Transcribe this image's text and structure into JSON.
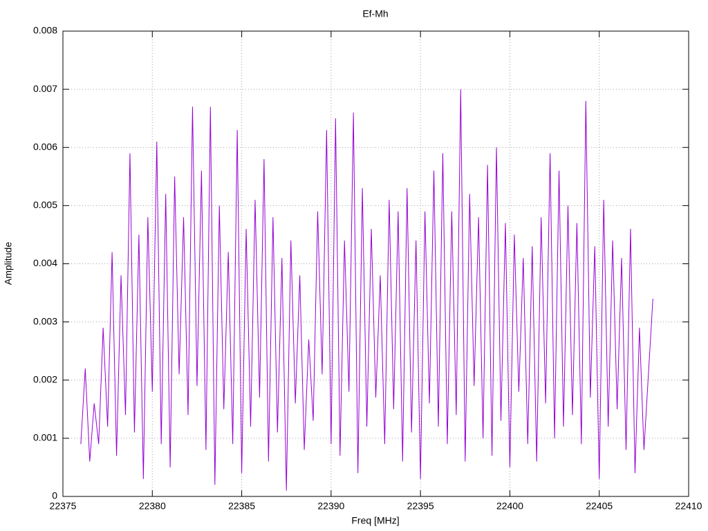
{
  "chart_data": {
    "type": "line",
    "title": "Ef-Mh",
    "x_label": "Freq [MHz]",
    "y_label": "Amplitude",
    "color": "#9400d3",
    "grid": true,
    "xlim": [
      22375,
      22410
    ],
    "xticks": [
      22375,
      22380,
      22385,
      22390,
      22395,
      22400,
      22405,
      22410
    ],
    "ylim": [
      0,
      0.008
    ],
    "yticks": [
      0,
      0.001,
      0.002,
      0.003,
      0.004,
      0.005,
      0.006,
      0.007,
      0.008
    ],
    "x": [
      22376,
      22376.25,
      22376.5,
      22376.75,
      22377,
      22377.25,
      22377.5,
      22377.75,
      22378,
      22378.25,
      22378.5,
      22378.75,
      22379,
      22379.25,
      22379.5,
      22379.75,
      22380,
      22380.25,
      22380.5,
      22380.75,
      22381,
      22381.25,
      22381.5,
      22381.75,
      22382,
      22382.25,
      22382.5,
      22382.75,
      22383,
      22383.25,
      22383.5,
      22383.75,
      22384,
      22384.25,
      22384.5,
      22384.75,
      22385,
      22385.25,
      22385.5,
      22385.75,
      22386,
      22386.25,
      22386.5,
      22386.75,
      22387,
      22387.25,
      22387.5,
      22387.75,
      22388,
      22388.25,
      22388.5,
      22388.75,
      22389,
      22389.25,
      22389.5,
      22389.75,
      22390,
      22390.25,
      22390.5,
      22390.75,
      22391,
      22391.25,
      22391.5,
      22391.75,
      22392,
      22392.25,
      22392.5,
      22392.75,
      22393,
      22393.25,
      22393.5,
      22393.75,
      22394,
      22394.25,
      22394.5,
      22394.75,
      22395,
      22395.25,
      22395.5,
      22395.75,
      22396,
      22396.25,
      22396.5,
      22396.75,
      22397,
      22397.25,
      22397.5,
      22397.75,
      22398,
      22398.25,
      22398.5,
      22398.75,
      22399,
      22399.25,
      22399.5,
      22399.75,
      22400,
      22400.25,
      22400.5,
      22400.75,
      22401,
      22401.25,
      22401.5,
      22401.75,
      22402,
      22402.25,
      22402.5,
      22402.75,
      22403,
      22403.25,
      22403.5,
      22403.75,
      22404,
      22404.25,
      22404.5,
      22404.75,
      22405,
      22405.25,
      22405.5,
      22405.75,
      22406,
      22406.25,
      22406.5,
      22406.75,
      22407,
      22407.25,
      22407.5,
      22407.75,
      22408
    ],
    "values": [
      0.0009,
      0.0022,
      0.0006,
      0.0016,
      0.0009,
      0.0029,
      0.0012,
      0.0042,
      0.0007,
      0.0038,
      0.0014,
      0.0059,
      0.0011,
      0.0045,
      0.0003,
      0.0048,
      0.0018,
      0.0061,
      0.0009,
      0.0052,
      0.0005,
      0.0055,
      0.0021,
      0.0048,
      0.0014,
      0.0067,
      0.0019,
      0.0056,
      0.0008,
      0.0067,
      0.0002,
      0.005,
      0.0015,
      0.0042,
      0.0009,
      0.0063,
      0.0004,
      0.0046,
      0.0012,
      0.0051,
      0.0017,
      0.0058,
      0.0006,
      0.0048,
      0.0011,
      0.0041,
      0.0001,
      0.0044,
      0.0016,
      0.0038,
      0.0008,
      0.0027,
      0.0013,
      0.0049,
      0.0021,
      0.0063,
      0.0009,
      0.0065,
      0.0007,
      0.0044,
      0.0018,
      0.0066,
      0.0004,
      0.0053,
      0.0012,
      0.0046,
      0.0017,
      0.0038,
      0.0009,
      0.0051,
      0.0015,
      0.0049,
      0.0006,
      0.0053,
      0.0011,
      0.0044,
      0.0003,
      0.0049,
      0.0016,
      0.0056,
      0.0012,
      0.0059,
      0.0009,
      0.0049,
      0.0014,
      0.007,
      0.0006,
      0.0052,
      0.0019,
      0.0048,
      0.001,
      0.0057,
      0.0007,
      0.006,
      0.0013,
      0.0047,
      0.0005,
      0.0045,
      0.0018,
      0.0041,
      0.0009,
      0.0043,
      0.0006,
      0.0048,
      0.0016,
      0.0059,
      0.001,
      0.0056,
      0.0012,
      0.005,
      0.0014,
      0.0047,
      0.0009,
      0.0068,
      0.0017,
      0.0043,
      0.0003,
      0.0051,
      0.0012,
      0.0044,
      0.0015,
      0.0041,
      0.0008,
      0.0046,
      0.0004,
      0.0029,
      0.0008,
      0.0021,
      0.0034
    ]
  }
}
